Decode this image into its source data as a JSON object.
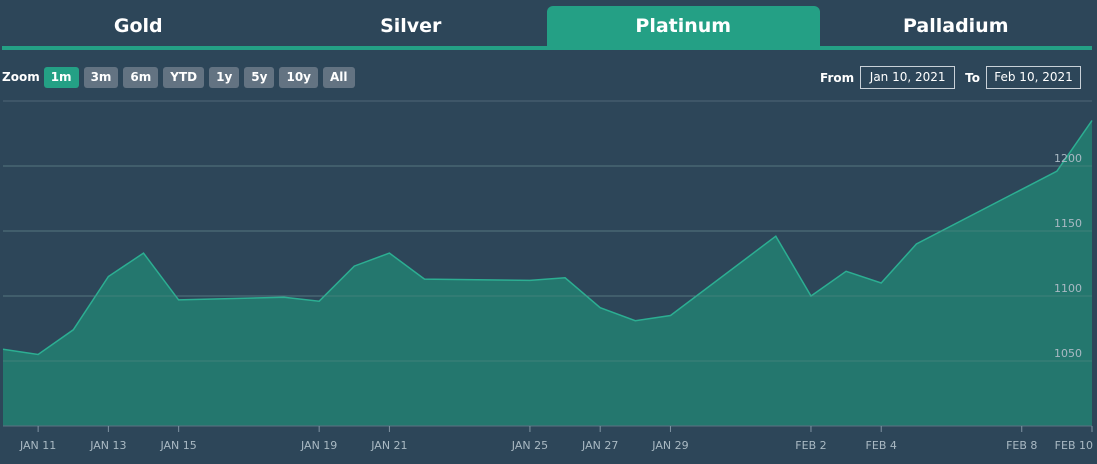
{
  "tabs": [
    {
      "label": "Gold"
    },
    {
      "label": "Silver"
    },
    {
      "label": "Platinum"
    },
    {
      "label": "Palladium"
    }
  ],
  "active_tab": 2,
  "zoom": {
    "label": "Zoom",
    "buttons": [
      "1m",
      "3m",
      "6m",
      "YTD",
      "1y",
      "5y",
      "10y",
      "All"
    ],
    "active": 0
  },
  "range": {
    "from_label": "From",
    "from_value": "Jan 10, 2021",
    "to_label": "To",
    "to_value": "Feb 10, 2021"
  },
  "colors": {
    "background": "#2d4659",
    "accent": "#24a085",
    "area_fill": "#247a70",
    "line": "#2cae92",
    "zoom_button": "#637382"
  },
  "chart_data": {
    "type": "area",
    "x": [
      "2021-01-10",
      "2021-01-11",
      "2021-01-12",
      "2021-01-13",
      "2021-01-14",
      "2021-01-15",
      "2021-01-18",
      "2021-01-19",
      "2021-01-20",
      "2021-01-21",
      "2021-01-22",
      "2021-01-25",
      "2021-01-26",
      "2021-01-27",
      "2021-01-28",
      "2021-01-29",
      "2021-02-01",
      "2021-02-02",
      "2021-02-03",
      "2021-02-04",
      "2021-02-05",
      "2021-02-08",
      "2021-02-09",
      "2021-02-10"
    ],
    "series": [
      {
        "values": [
          1059,
          1055,
          1074,
          1115,
          1133,
          1097,
          1099,
          1096,
          1123,
          1133,
          1113,
          1112,
          1114,
          1091,
          1081,
          1085,
          1146,
          1100,
          1119,
          1110,
          1140,
          1182,
          1196,
          1235
        ]
      }
    ],
    "x_ticks": [
      {
        "date": "2021-01-11",
        "label": "JAN 11"
      },
      {
        "date": "2021-01-13",
        "label": "JAN 13"
      },
      {
        "date": "2021-01-15",
        "label": "JAN 15"
      },
      {
        "date": "2021-01-19",
        "label": "JAN 19"
      },
      {
        "date": "2021-01-21",
        "label": "JAN 21"
      },
      {
        "date": "2021-01-25",
        "label": "JAN 25"
      },
      {
        "date": "2021-01-27",
        "label": "JAN 27"
      },
      {
        "date": "2021-01-29",
        "label": "JAN 29"
      },
      {
        "date": "2021-02-02",
        "label": "FEB 2"
      },
      {
        "date": "2021-02-04",
        "label": "FEB 4"
      },
      {
        "date": "2021-02-08",
        "label": "FEB 8"
      },
      {
        "date": "2021-02-10",
        "label": "FEB 10"
      }
    ],
    "y_ticks": [
      1050,
      1100,
      1150,
      1200
    ],
    "ylim": [
      1000,
      1250
    ],
    "grid": true,
    "legend": "none",
    "y_axis_position": "right"
  }
}
